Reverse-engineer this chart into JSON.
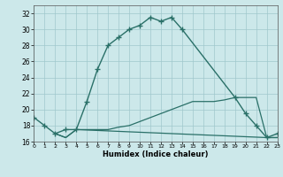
{
  "xlabel": "Humidex (Indice chaleur)",
  "bg_color": "#cce8ea",
  "grid_color": "#a0c8cc",
  "line_color": "#2a7068",
  "xlim": [
    0,
    23
  ],
  "ylim": [
    16,
    33
  ],
  "yticks": [
    16,
    18,
    20,
    22,
    24,
    26,
    28,
    30,
    32
  ],
  "xticks": [
    0,
    1,
    2,
    3,
    4,
    5,
    6,
    7,
    8,
    9,
    10,
    11,
    12,
    13,
    14,
    15,
    16,
    17,
    18,
    19,
    20,
    21,
    22,
    23
  ],
  "curve1_x": [
    0,
    1,
    2,
    3,
    4,
    5,
    6,
    7,
    8,
    9,
    10,
    11,
    12,
    13,
    14,
    19,
    20,
    21,
    22,
    23
  ],
  "curve1_y": [
    19.0,
    18.0,
    17.0,
    17.5,
    17.5,
    21.0,
    25.0,
    28.0,
    29.0,
    30.0,
    30.5,
    31.5,
    31.0,
    31.5,
    30.0,
    21.5,
    19.5,
    18.0,
    16.5,
    17.0
  ],
  "curve2_x": [
    2,
    3,
    4,
    22,
    23
  ],
  "curve2_y": [
    17.0,
    16.5,
    17.5,
    16.5,
    16.5
  ],
  "curve3_x": [
    2,
    3,
    4,
    5,
    6,
    7,
    8,
    9,
    10,
    11,
    12,
    13,
    14,
    15,
    16,
    17,
    18,
    19,
    20,
    21,
    22,
    23
  ],
  "curve3_y": [
    17.0,
    16.5,
    17.5,
    17.5,
    17.5,
    17.5,
    17.8,
    18.0,
    18.5,
    19.0,
    19.5,
    20.0,
    20.5,
    21.0,
    21.0,
    21.0,
    21.2,
    21.5,
    21.5,
    21.5,
    16.5,
    16.5
  ]
}
